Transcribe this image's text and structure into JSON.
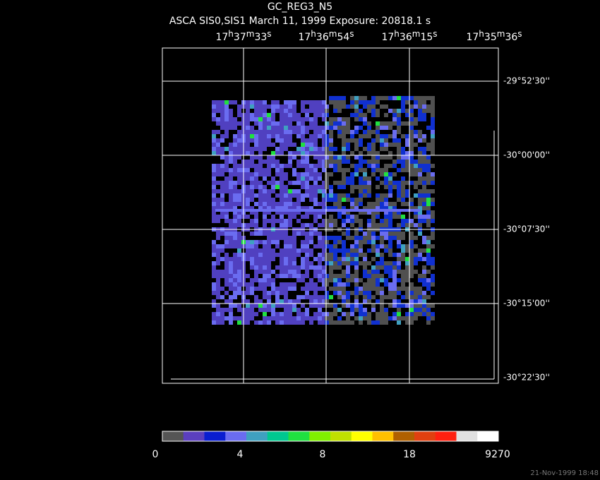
{
  "header": {
    "title": "GC_REG3_N5",
    "subtitle": "ASCA SIS0,SIS1 March 11, 1999 Exposure: 20818.1 s"
  },
  "ra_labels": [
    [
      "17",
      "h",
      "37",
      "m",
      "33",
      "s"
    ],
    [
      "17",
      "h",
      "36",
      "m",
      "54",
      "s"
    ],
    [
      "17",
      "h",
      "36",
      "m",
      "15",
      "s"
    ],
    [
      "17",
      "h",
      "35",
      "m",
      "36",
      "s"
    ]
  ],
  "dec_labels": [
    "-29°52'30''",
    "-30°00'00''",
    "-30°07'30''",
    "-30°15'00''",
    "-30°22'30''"
  ],
  "colorbar_labels": [
    "0",
    "4",
    "8",
    "18",
    "9270"
  ],
  "footer": "21-Nov-1999 18:48"
}
